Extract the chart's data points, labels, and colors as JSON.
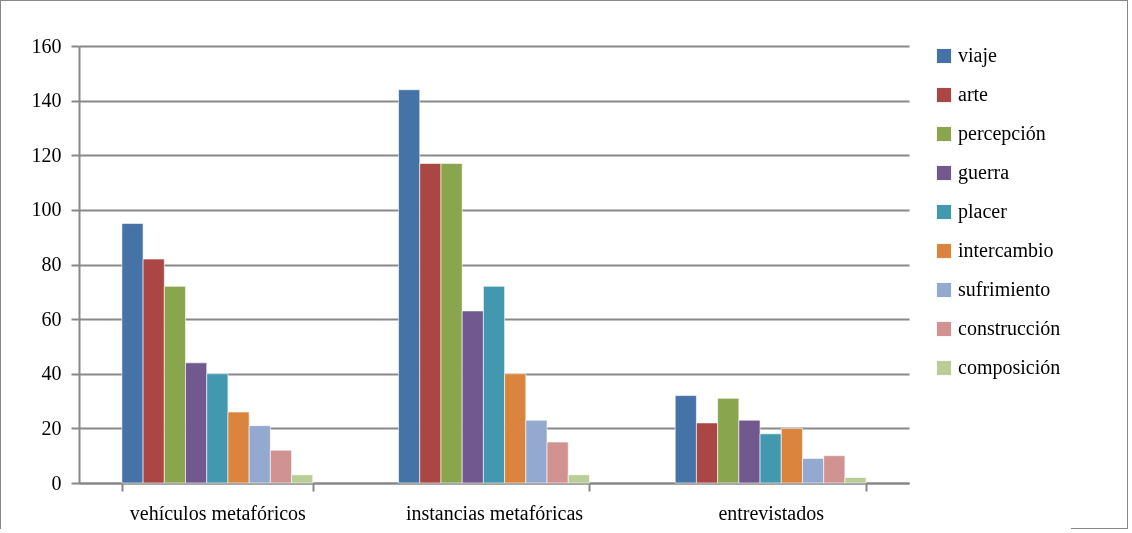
{
  "chart_data": {
    "type": "bar",
    "categories": [
      "vehículos metafóricos",
      "instancias metafóricas",
      "entrevistados"
    ],
    "series": [
      {
        "name": "viaje",
        "color": "#4572a7",
        "values": [
          95,
          144,
          32
        ]
      },
      {
        "name": "arte",
        "color": "#aa4643",
        "values": [
          82,
          117,
          22
        ]
      },
      {
        "name": "percepción",
        "color": "#89a54e",
        "values": [
          72,
          117,
          31
        ]
      },
      {
        "name": "guerra",
        "color": "#71588f",
        "values": [
          44,
          63,
          23
        ]
      },
      {
        "name": "placer",
        "color": "#4198af",
        "values": [
          40,
          72,
          18
        ]
      },
      {
        "name": "intercambio",
        "color": "#db843d",
        "values": [
          26,
          40,
          20
        ]
      },
      {
        "name": "sufrimiento",
        "color": "#93a9cf",
        "values": [
          21,
          23,
          9
        ]
      },
      {
        "name": "construcción",
        "color": "#d19392",
        "values": [
          12,
          15,
          10
        ]
      },
      {
        "name": "composición",
        "color": "#b9cd96",
        "values": [
          3,
          3,
          2
        ]
      }
    ],
    "ylim": [
      0,
      160
    ],
    "yticks": [
      0,
      20,
      40,
      60,
      80,
      100,
      120,
      140,
      160
    ],
    "grid": "y",
    "legend": "right"
  }
}
